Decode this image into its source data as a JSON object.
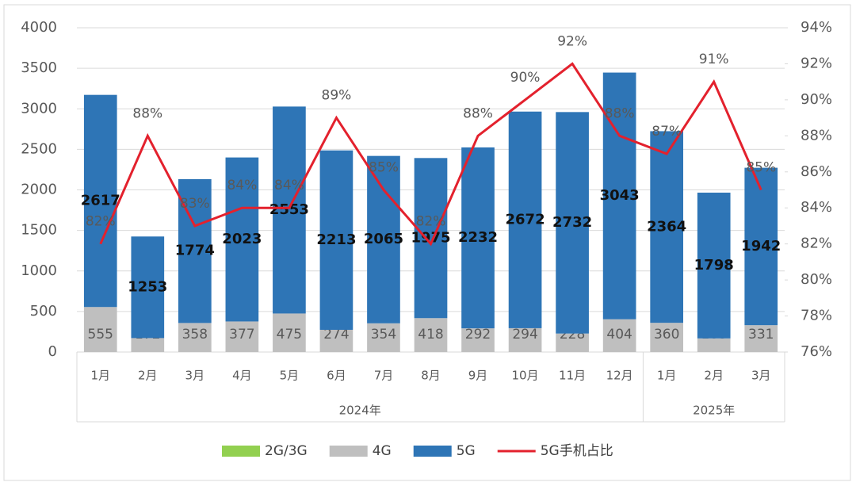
{
  "chart_data": {
    "type": "bar",
    "groups": [
      {
        "label": "2024年",
        "categories": [
          "1月",
          "2月",
          "3月",
          "4月",
          "5月",
          "6月",
          "7月",
          "8月",
          "9月",
          "10月",
          "11月",
          "12月"
        ]
      },
      {
        "label": "2025年",
        "categories": [
          "1月",
          "2月",
          "3月"
        ]
      }
    ],
    "stacked": true,
    "series": [
      {
        "name": "2G/3G",
        "color": "#92d050",
        "values": [
          0,
          0,
          0,
          0,
          0,
          0,
          0,
          0,
          0,
          0,
          0,
          0,
          0,
          0,
          0
        ]
      },
      {
        "name": "4G",
        "color": "#bfbfbf",
        "values": [
          555,
          172,
          358,
          377,
          475,
          274,
          354,
          418,
          292,
          294,
          228,
          404,
          360,
          168,
          331
        ]
      },
      {
        "name": "5G",
        "color": "#2e75b6",
        "values": [
          2617,
          1253,
          1774,
          2023,
          2553,
          2213,
          2065,
          1975,
          2232,
          2672,
          2732,
          3043,
          2364,
          1798,
          1942
        ]
      },
      {
        "name": "5G手机占比",
        "type": "line",
        "axis": "y2",
        "color": "#e3212d",
        "values": [
          82,
          88,
          83,
          84,
          84,
          89,
          85,
          82,
          88,
          90,
          92,
          88,
          87,
          91,
          85
        ],
        "value_labels": [
          "82%",
          "88%",
          "83%",
          "84%",
          "84%",
          "89%",
          "85%",
          "82%",
          "88%",
          "90%",
          "92%",
          "88%",
          "87%",
          "91%",
          "85%"
        ]
      }
    ],
    "ylim": [
      0,
      4000
    ],
    "yticks": [
      0,
      500,
      1000,
      1500,
      2000,
      2500,
      3000,
      3500,
      4000
    ],
    "y2lim": [
      76,
      94
    ],
    "y2ticks": [
      {
        "value": 76,
        "label": "76%"
      },
      {
        "value": 78,
        "label": "78%"
      },
      {
        "value": 80,
        "label": "80%"
      },
      {
        "value": 82,
        "label": "82%"
      },
      {
        "value": 84,
        "label": "84%"
      },
      {
        "value": 86,
        "label": "86%"
      },
      {
        "value": 88,
        "label": "88%"
      },
      {
        "value": 90,
        "label": "90%"
      },
      {
        "value": 92,
        "label": "92%"
      },
      {
        "value": 94,
        "label": "94%"
      }
    ],
    "grid": true,
    "legend": "bottom"
  }
}
